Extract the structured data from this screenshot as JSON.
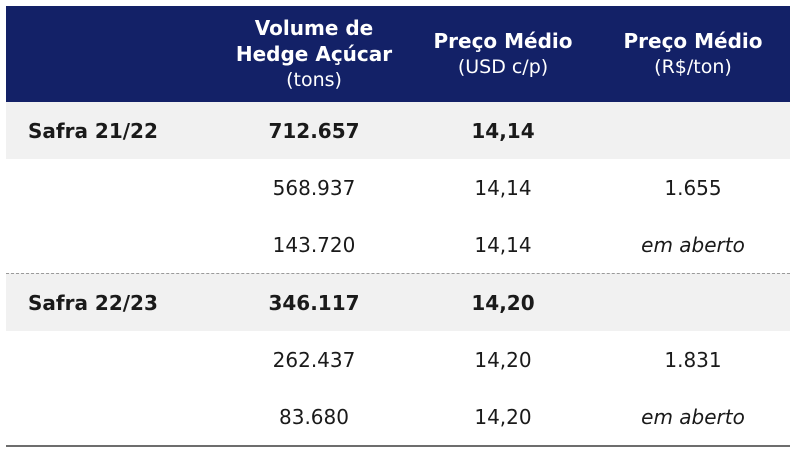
{
  "header": {
    "col1": {
      "line1": "Volume de",
      "line2": "Hedge Açúcar",
      "line3": "(tons)"
    },
    "col2": {
      "line1": "Preço Médio",
      "line2": "(USD c/p)"
    },
    "col3": {
      "line1": "Preço Médio",
      "line2": "(R$/ton)"
    }
  },
  "rows": [
    {
      "label": "Safra 21/22",
      "volume": "712.657",
      "usd": "14,14",
      "brl": ""
    },
    {
      "label": "",
      "volume": "568.937",
      "usd": "14,14",
      "brl": "1.655"
    },
    {
      "label": "",
      "volume": "143.720",
      "usd": "14,14",
      "brl": "em aberto"
    },
    {
      "label": "Safra 22/23",
      "volume": "346.117",
      "usd": "14,20",
      "brl": ""
    },
    {
      "label": "",
      "volume": "262.437",
      "usd": "14,20",
      "brl": "1.831"
    },
    {
      "label": "",
      "volume": "83.680",
      "usd": "14,20",
      "brl": "em aberto"
    }
  ],
  "colors": {
    "header_bg": "#132167",
    "header_text": "#ffffff",
    "shade_row": "#f1f1f1"
  }
}
